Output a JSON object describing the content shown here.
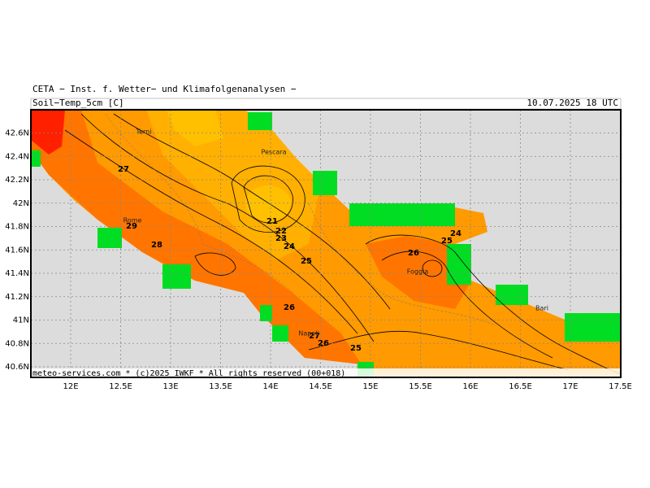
{
  "header": {
    "title": "CETA − Inst. f. Wetter− und Klimafolgenanalysen −",
    "field": "Soil−Temp_5cm [C]",
    "time": "10.07.2025 18 UTC"
  },
  "footer": "meteo-services.com * (c)2025 IWKF * All rights reserved (00+018)",
  "lon_ticks": [
    {
      "value": 12,
      "label": "12E"
    },
    {
      "value": 12.5,
      "label": "12.5E"
    },
    {
      "value": 13,
      "label": "13E"
    },
    {
      "value": 13.5,
      "label": "13.5E"
    },
    {
      "value": 14,
      "label": "14E"
    },
    {
      "value": 14.5,
      "label": "14.5E"
    },
    {
      "value": 15,
      "label": "15E"
    },
    {
      "value": 15.5,
      "label": "15.5E"
    },
    {
      "value": 16,
      "label": "16E"
    },
    {
      "value": 16.5,
      "label": "16.5E"
    },
    {
      "value": 17,
      "label": "17E"
    },
    {
      "value": 17.5,
      "label": "17.5E"
    }
  ],
  "lat_ticks": [
    {
      "value": 42.6,
      "label": "42.6N"
    },
    {
      "value": 42.4,
      "label": "42.4N"
    },
    {
      "value": 42.2,
      "label": "42.2N"
    },
    {
      "value": 42,
      "label": "42N"
    },
    {
      "value": 41.8,
      "label": "41.8N"
    },
    {
      "value": 41.6,
      "label": "41.6N"
    },
    {
      "value": 41.4,
      "label": "41.4N"
    },
    {
      "value": 41.2,
      "label": "41.2N"
    },
    {
      "value": 41,
      "label": "41N"
    },
    {
      "value": 40.8,
      "label": "40.8N"
    },
    {
      "value": 40.6,
      "label": "40.6N"
    }
  ],
  "contour_labels": [
    27,
    29,
    28,
    21,
    22,
    23,
    24,
    25,
    26,
    25,
    24,
    26,
    27,
    26,
    25
  ],
  "cities": [
    "Terni",
    "Pescara",
    "Rome",
    "Foggia",
    "Bari",
    "Napoli"
  ]
}
